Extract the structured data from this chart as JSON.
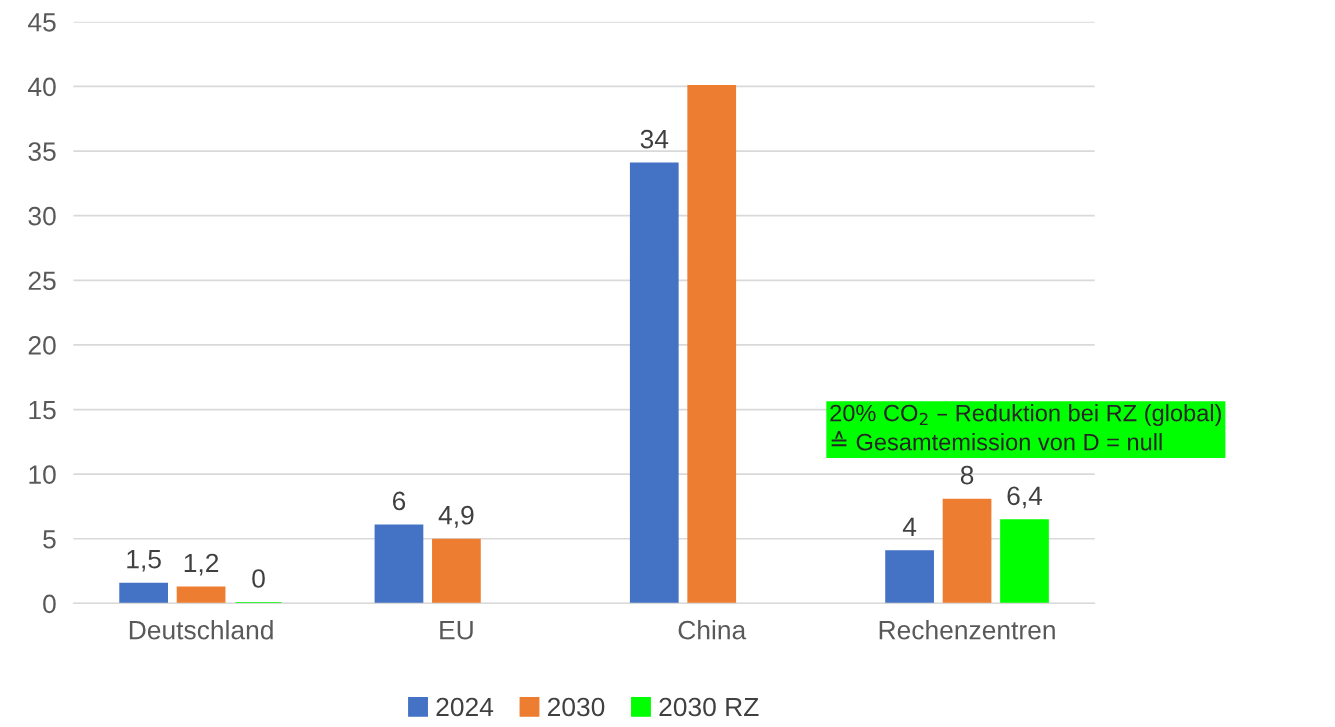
{
  "chart_data": {
    "type": "bar",
    "categories": [
      "Deutschland",
      "EU",
      "China",
      "Rechenzentren"
    ],
    "series": [
      {
        "name": "2024",
        "color": "#4472c4",
        "values": [
          1.5,
          6,
          34,
          4
        ],
        "value_labels": [
          "1,5",
          "6",
          "34",
          "4"
        ]
      },
      {
        "name": "2030",
        "color": "#ed7d31",
        "values": [
          1.2,
          4.9,
          40,
          8
        ],
        "value_labels": [
          "1,2",
          "4,9",
          null,
          "8"
        ]
      },
      {
        "name": "2030 RZ",
        "color": "#00ff00",
        "values": [
          0,
          null,
          null,
          6.4
        ],
        "value_labels": [
          "0",
          null,
          null,
          "6,4"
        ]
      }
    ],
    "ylim": [
      0,
      45
    ],
    "yticks": [
      0,
      5,
      10,
      15,
      20,
      25,
      30,
      35,
      40,
      45
    ],
    "grid": "y",
    "legend": "bottom",
    "annotations": [
      "20% CO$_{2}$ – Reduktion bei RZ (global)\n≙ Gesamtemission von D = null"
    ]
  }
}
